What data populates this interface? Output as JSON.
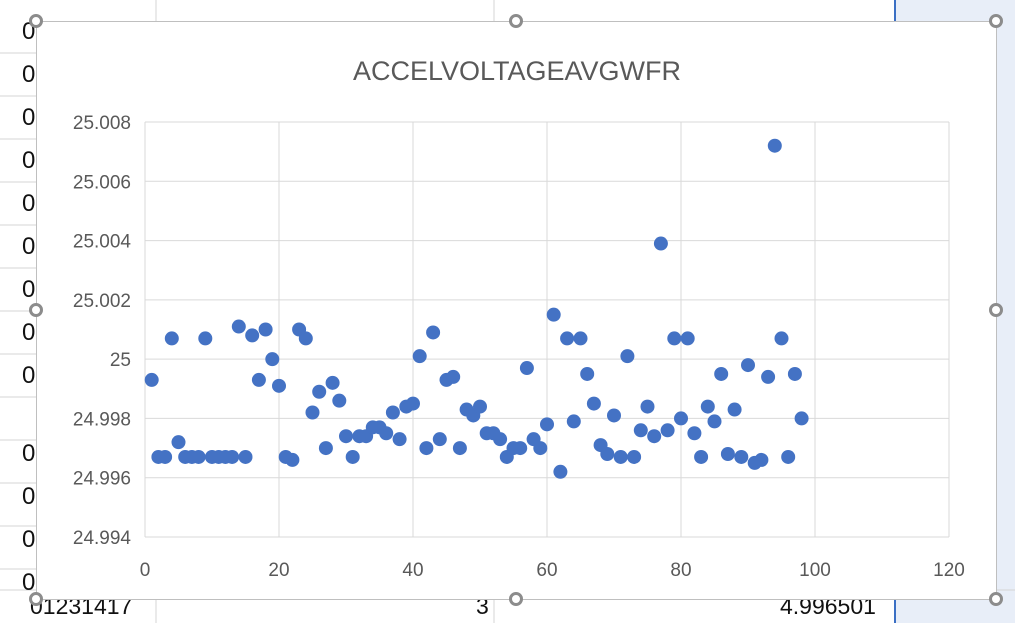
{
  "spreadsheet": {
    "left_cells": [
      "0",
      "0",
      "0",
      "0",
      "0",
      "0",
      "0",
      "0",
      "0",
      "0",
      "0",
      "0",
      "0"
    ],
    "bottom_row": {
      "cell_a": "01231417",
      "cell_b": "3",
      "cell_c": "4.996501"
    }
  },
  "chart_data": {
    "type": "scatter",
    "title": "ACCELVOLTAGEAVGWFR",
    "xlabel": "",
    "ylabel": "",
    "xlim": [
      0,
      120
    ],
    "ylim": [
      24.994,
      25.008
    ],
    "x_ticks": [
      0,
      20,
      40,
      60,
      80,
      100,
      120
    ],
    "x_tick_labels": [
      "0",
      "20",
      "40",
      "60",
      "80",
      "100",
      "120"
    ],
    "y_ticks": [
      24.994,
      24.996,
      24.998,
      25,
      25.002,
      25.004,
      25.006,
      25.008
    ],
    "y_tick_labels": [
      "24.994",
      "24.996",
      "24.998",
      "25",
      "25.002",
      "25.004",
      "25.006",
      "25.008"
    ],
    "grid": true,
    "marker_color": "#4472C4",
    "points": [
      [
        1,
        24.9993
      ],
      [
        2,
        24.9967
      ],
      [
        3,
        24.9967
      ],
      [
        4,
        25.0007
      ],
      [
        5,
        24.9972
      ],
      [
        6,
        24.9967
      ],
      [
        7,
        24.9967
      ],
      [
        8,
        24.9967
      ],
      [
        9,
        25.0007
      ],
      [
        10,
        24.9967
      ],
      [
        11,
        24.9967
      ],
      [
        12,
        24.9967
      ],
      [
        13,
        24.9967
      ],
      [
        14,
        25.0011
      ],
      [
        15,
        24.9967
      ],
      [
        16,
        25.0008
      ],
      [
        17,
        24.9993
      ],
      [
        18,
        25.001
      ],
      [
        19,
        25.0
      ],
      [
        20,
        24.9991
      ],
      [
        21,
        24.9967
      ],
      [
        22,
        24.9966
      ],
      [
        23,
        25.001
      ],
      [
        24,
        25.0007
      ],
      [
        25,
        24.9982
      ],
      [
        26,
        24.9989
      ],
      [
        27,
        24.997
      ],
      [
        28,
        24.9992
      ],
      [
        29,
        24.9986
      ],
      [
        30,
        24.9974
      ],
      [
        31,
        24.9967
      ],
      [
        32,
        24.9974
      ],
      [
        33,
        24.9974
      ],
      [
        34,
        24.9977
      ],
      [
        35,
        24.9977
      ],
      [
        36,
        24.9975
      ],
      [
        37,
        24.9982
      ],
      [
        38,
        24.9973
      ],
      [
        39,
        24.9984
      ],
      [
        40,
        24.9985
      ],
      [
        41,
        25.0001
      ],
      [
        42,
        24.997
      ],
      [
        43,
        25.0009
      ],
      [
        44,
        24.9973
      ],
      [
        45,
        24.9993
      ],
      [
        46,
        24.9994
      ],
      [
        47,
        24.997
      ],
      [
        48,
        24.9983
      ],
      [
        49,
        24.9981
      ],
      [
        50,
        24.9984
      ],
      [
        51,
        24.9975
      ],
      [
        52,
        24.9975
      ],
      [
        53,
        24.9973
      ],
      [
        54,
        24.9967
      ],
      [
        55,
        24.997
      ],
      [
        56,
        24.997
      ],
      [
        57,
        24.9997
      ],
      [
        58,
        24.9973
      ],
      [
        59,
        24.997
      ],
      [
        60,
        24.9978
      ],
      [
        61,
        25.0015
      ],
      [
        62,
        24.9962
      ],
      [
        63,
        25.0007
      ],
      [
        64,
        24.9979
      ],
      [
        65,
        25.0007
      ],
      [
        66,
        24.9995
      ],
      [
        67,
        24.9985
      ],
      [
        68,
        24.9971
      ],
      [
        69,
        24.9968
      ],
      [
        70,
        24.9981
      ],
      [
        71,
        24.9967
      ],
      [
        72,
        25.0001
      ],
      [
        73,
        24.9967
      ],
      [
        74,
        24.9976
      ],
      [
        75,
        24.9984
      ],
      [
        76,
        24.9974
      ],
      [
        77,
        25.0039
      ],
      [
        78,
        24.9976
      ],
      [
        79,
        25.0007
      ],
      [
        80,
        24.998
      ],
      [
        81,
        25.0007
      ],
      [
        82,
        24.9975
      ],
      [
        83,
        24.9967
      ],
      [
        84,
        24.9984
      ],
      [
        85,
        24.9979
      ],
      [
        86,
        24.9995
      ],
      [
        87,
        24.9968
      ],
      [
        88,
        24.9983
      ],
      [
        89,
        24.9967
      ],
      [
        90,
        24.9998
      ],
      [
        91,
        24.9965
      ],
      [
        92,
        24.9966
      ],
      [
        93,
        24.9994
      ],
      [
        94,
        25.0072
      ],
      [
        95,
        25.0007
      ],
      [
        96,
        24.9967
      ],
      [
        97,
        24.9995
      ],
      [
        98,
        24.998
      ]
    ]
  }
}
